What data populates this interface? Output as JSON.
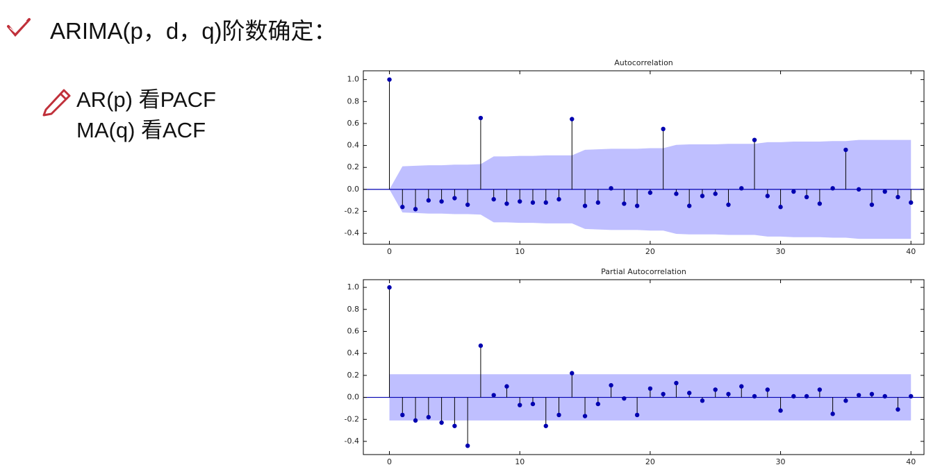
{
  "slide": {
    "title": "ARIMA(p，d，q)阶数确定：",
    "bullets": [
      "AR(p)  看PACF",
      "MA(q) 看ACF"
    ]
  },
  "chart_data": [
    {
      "type": "stem",
      "title": "Autocorrelation",
      "x": [
        0,
        1,
        2,
        3,
        4,
        5,
        6,
        7,
        8,
        9,
        10,
        11,
        12,
        13,
        14,
        15,
        16,
        17,
        18,
        19,
        20,
        21,
        22,
        23,
        24,
        25,
        26,
        27,
        28,
        29,
        30,
        31,
        32,
        33,
        34,
        35,
        36,
        37,
        38,
        39,
        40
      ],
      "values": [
        1.0,
        -0.16,
        -0.18,
        -0.1,
        -0.11,
        -0.08,
        -0.14,
        0.65,
        -0.09,
        -0.13,
        -0.11,
        -0.12,
        -0.12,
        -0.09,
        0.64,
        -0.15,
        -0.12,
        0.01,
        -0.13,
        -0.15,
        -0.03,
        0.55,
        -0.04,
        -0.15,
        -0.06,
        -0.04,
        -0.14,
        0.01,
        0.45,
        -0.06,
        -0.16,
        -0.02,
        -0.07,
        -0.13,
        0.01,
        0.36,
        0.0,
        -0.14,
        -0.02,
        -0.07,
        -0.12
      ],
      "band_upper": [
        0,
        0.21,
        0.215,
        0.22,
        0.22,
        0.225,
        0.225,
        0.23,
        0.3,
        0.3,
        0.305,
        0.305,
        0.31,
        0.31,
        0.31,
        0.36,
        0.365,
        0.37,
        0.37,
        0.37,
        0.375,
        0.375,
        0.405,
        0.41,
        0.41,
        0.41,
        0.415,
        0.415,
        0.415,
        0.43,
        0.43,
        0.435,
        0.435,
        0.435,
        0.44,
        0.44,
        0.45,
        0.45,
        0.45,
        0.45,
        0.45
      ],
      "band_lower": [
        0,
        -0.21,
        -0.215,
        -0.22,
        -0.22,
        -0.225,
        -0.225,
        -0.23,
        -0.3,
        -0.3,
        -0.305,
        -0.305,
        -0.31,
        -0.31,
        -0.31,
        -0.36,
        -0.365,
        -0.37,
        -0.37,
        -0.37,
        -0.375,
        -0.375,
        -0.405,
        -0.41,
        -0.41,
        -0.41,
        -0.415,
        -0.415,
        -0.415,
        -0.43,
        -0.43,
        -0.435,
        -0.435,
        -0.435,
        -0.44,
        -0.44,
        -0.45,
        -0.45,
        -0.45,
        -0.45,
        -0.45
      ],
      "color": "#0000b0",
      "band_color": "#b4b4ff",
      "xlim": [
        -2,
        41
      ],
      "xticks": [
        0,
        10,
        20,
        30,
        40
      ],
      "ylim": [
        -0.5,
        1.08
      ],
      "yticks": [
        -0.4,
        -0.2,
        {
          "value": 0,
          "label": "0.0"
        },
        0.2,
        0.4,
        0.6,
        0.8,
        {
          "value": 1,
          "label": "1.0"
        }
      ]
    },
    {
      "type": "stem",
      "title": "Partial Autocorrelation",
      "x": [
        0,
        1,
        2,
        3,
        4,
        5,
        6,
        7,
        8,
        9,
        10,
        11,
        12,
        13,
        14,
        15,
        16,
        17,
        18,
        19,
        20,
        21,
        22,
        23,
        24,
        25,
        26,
        27,
        28,
        29,
        30,
        31,
        32,
        33,
        34,
        35,
        36,
        37,
        38,
        39,
        40
      ],
      "values": [
        1.0,
        -0.16,
        -0.21,
        -0.18,
        -0.23,
        -0.26,
        -0.44,
        0.47,
        0.02,
        0.1,
        -0.07,
        -0.06,
        -0.26,
        -0.16,
        0.22,
        -0.17,
        -0.06,
        0.11,
        -0.01,
        -0.16,
        0.08,
        0.03,
        0.13,
        0.04,
        -0.03,
        0.07,
        0.03,
        0.1,
        0.01,
        0.07,
        -0.12,
        0.01,
        0.01,
        0.07,
        -0.15,
        -0.03,
        0.02,
        0.03,
        0.01,
        -0.11,
        0.01
      ],
      "band_upper": [
        0.21,
        0.21,
        0.21,
        0.21,
        0.21,
        0.21,
        0.21,
        0.21,
        0.21,
        0.21,
        0.21,
        0.21,
        0.21,
        0.21,
        0.21,
        0.21,
        0.21,
        0.21,
        0.21,
        0.21,
        0.21,
        0.21,
        0.21,
        0.21,
        0.21,
        0.21,
        0.21,
        0.21,
        0.21,
        0.21,
        0.21,
        0.21,
        0.21,
        0.21,
        0.21,
        0.21,
        0.21,
        0.21,
        0.21,
        0.21,
        0.21
      ],
      "band_lower": [
        -0.21,
        -0.21,
        -0.21,
        -0.21,
        -0.21,
        -0.21,
        -0.21,
        -0.21,
        -0.21,
        -0.21,
        -0.21,
        -0.21,
        -0.21,
        -0.21,
        -0.21,
        -0.21,
        -0.21,
        -0.21,
        -0.21,
        -0.21,
        -0.21,
        -0.21,
        -0.21,
        -0.21,
        -0.21,
        -0.21,
        -0.21,
        -0.21,
        -0.21,
        -0.21,
        -0.21,
        -0.21,
        -0.21,
        -0.21,
        -0.21,
        -0.21,
        -0.21,
        -0.21,
        -0.21,
        -0.21,
        -0.21
      ],
      "color": "#0000b0",
      "band_color": "#b4b4ff",
      "xlim": [
        -2,
        41
      ],
      "xticks": [
        0,
        10,
        20,
        30,
        40
      ],
      "ylim": [
        -0.52,
        1.07
      ],
      "yticks": [
        -0.4,
        -0.2,
        {
          "value": 0,
          "label": "0.0"
        },
        0.2,
        0.4,
        0.6,
        0.8,
        {
          "value": 1,
          "label": "1.0"
        }
      ]
    }
  ]
}
